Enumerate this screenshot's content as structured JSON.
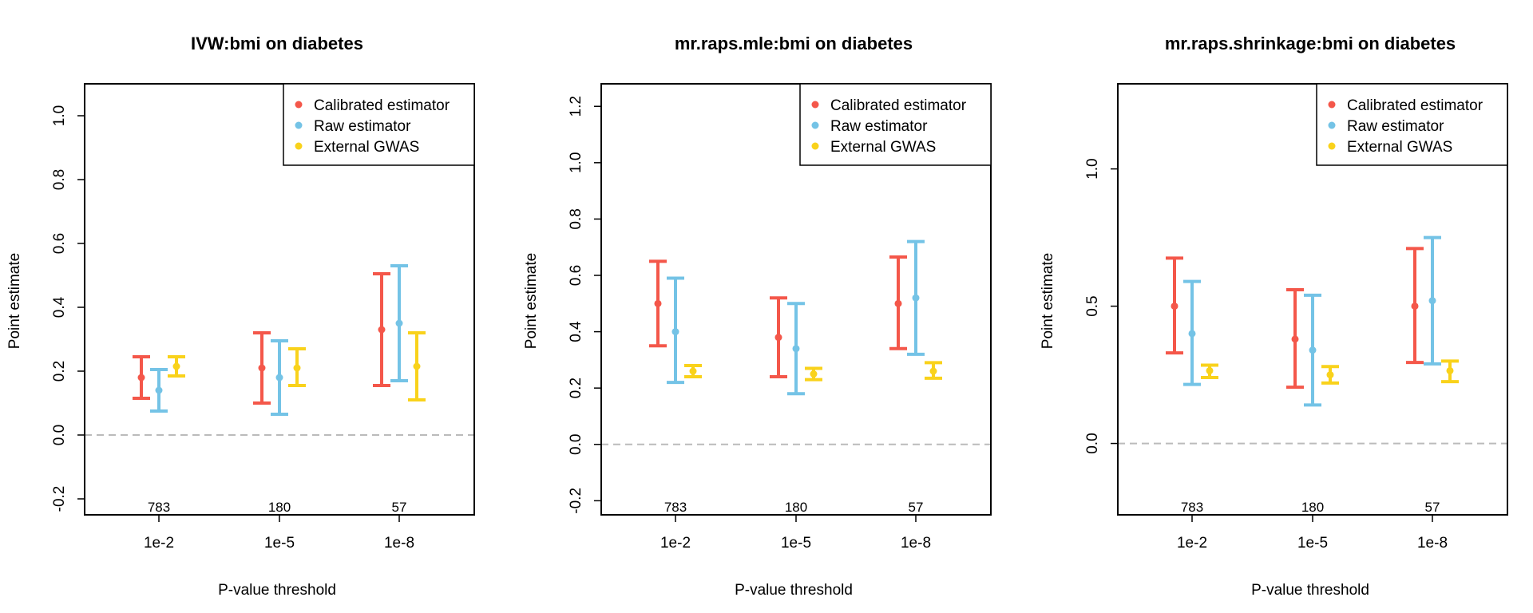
{
  "colors": {
    "calibrated": "#F4574A",
    "raw": "#74C3E6",
    "external": "#F9D21B",
    "zero_line": "#BBBBBB"
  },
  "chart_data": [
    {
      "type": "errorbar",
      "title": "IVW:bmi on diabetes",
      "xlabel": "P-value threshold",
      "ylabel": "Point estimate",
      "categories": [
        "1e-2",
        "1e-5",
        "1e-8"
      ],
      "counts": [
        "783",
        "180",
        "57"
      ],
      "ylim": [
        -0.25,
        1.1
      ],
      "yticks": [
        -0.2,
        0.0,
        0.2,
        0.4,
        0.6,
        0.8,
        1.0
      ],
      "ytick_labels": [
        "-0.2",
        "0.0",
        "0.2",
        "0.4",
        "0.6",
        "0.8",
        "1.0"
      ],
      "zero_line": 0,
      "legend_position": "top-right",
      "series": [
        {
          "name": "Calibrated estimator",
          "color_key": "calibrated",
          "points": [
            {
              "est": 0.18,
              "lo": 0.115,
              "hi": 0.245
            },
            {
              "est": 0.21,
              "lo": 0.1,
              "hi": 0.32
            },
            {
              "est": 0.33,
              "lo": 0.155,
              "hi": 0.505
            }
          ]
        },
        {
          "name": "Raw estimator",
          "color_key": "raw",
          "points": [
            {
              "est": 0.14,
              "lo": 0.075,
              "hi": 0.205
            },
            {
              "est": 0.18,
              "lo": 0.065,
              "hi": 0.295
            },
            {
              "est": 0.35,
              "lo": 0.17,
              "hi": 0.53
            }
          ]
        },
        {
          "name": "External GWAS",
          "color_key": "external",
          "points": [
            {
              "est": 0.215,
              "lo": 0.185,
              "hi": 0.245
            },
            {
              "est": 0.21,
              "lo": 0.155,
              "hi": 0.27
            },
            {
              "est": 0.215,
              "lo": 0.11,
              "hi": 0.32
            }
          ]
        }
      ]
    },
    {
      "type": "errorbar",
      "title": "mr.raps.mle:bmi on diabetes",
      "xlabel": "P-value threshold",
      "ylabel": "Point estimate",
      "categories": [
        "1e-2",
        "1e-5",
        "1e-8"
      ],
      "counts": [
        "783",
        "180",
        "57"
      ],
      "ylim": [
        -0.25,
        1.28
      ],
      "yticks": [
        -0.2,
        0.0,
        0.2,
        0.4,
        0.6,
        0.8,
        1.0,
        1.2
      ],
      "ytick_labels": [
        "-0.2",
        "0.0",
        "0.2",
        "0.4",
        "0.6",
        "0.8",
        "1.0",
        "1.2"
      ],
      "zero_line": 0,
      "legend_position": "top-right",
      "series": [
        {
          "name": "Calibrated estimator",
          "color_key": "calibrated",
          "points": [
            {
              "est": 0.5,
              "lo": 0.35,
              "hi": 0.65
            },
            {
              "est": 0.38,
              "lo": 0.24,
              "hi": 0.52
            },
            {
              "est": 0.5,
              "lo": 0.34,
              "hi": 0.665
            }
          ]
        },
        {
          "name": "Raw estimator",
          "color_key": "raw",
          "points": [
            {
              "est": 0.4,
              "lo": 0.22,
              "hi": 0.59
            },
            {
              "est": 0.34,
              "lo": 0.18,
              "hi": 0.5
            },
            {
              "est": 0.52,
              "lo": 0.32,
              "hi": 0.72
            }
          ]
        },
        {
          "name": "External GWAS",
          "color_key": "external",
          "points": [
            {
              "est": 0.26,
              "lo": 0.24,
              "hi": 0.28
            },
            {
              "est": 0.25,
              "lo": 0.23,
              "hi": 0.27
            },
            {
              "est": 0.26,
              "lo": 0.235,
              "hi": 0.29
            }
          ]
        }
      ]
    },
    {
      "type": "errorbar",
      "title": "mr.raps.shrinkage:bmi on diabetes",
      "xlabel": "P-value threshold",
      "ylabel": "Point estimate",
      "categories": [
        "1e-2",
        "1e-5",
        "1e-8"
      ],
      "counts": [
        "783",
        "180",
        "57"
      ],
      "ylim": [
        -0.26,
        1.31
      ],
      "yticks": [
        0.0,
        0.5,
        1.0
      ],
      "ytick_labels": [
        "0.0",
        "0.5",
        "1.0"
      ],
      "zero_line": 0,
      "legend_position": "top-right",
      "series": [
        {
          "name": "Calibrated estimator",
          "color_key": "calibrated",
          "points": [
            {
              "est": 0.5,
              "lo": 0.33,
              "hi": 0.675
            },
            {
              "est": 0.38,
              "lo": 0.205,
              "hi": 0.56
            },
            {
              "est": 0.5,
              "lo": 0.295,
              "hi": 0.71
            }
          ]
        },
        {
          "name": "Raw estimator",
          "color_key": "raw",
          "points": [
            {
              "est": 0.4,
              "lo": 0.215,
              "hi": 0.59
            },
            {
              "est": 0.34,
              "lo": 0.14,
              "hi": 0.54
            },
            {
              "est": 0.52,
              "lo": 0.29,
              "hi": 0.75
            }
          ]
        },
        {
          "name": "External GWAS",
          "color_key": "external",
          "points": [
            {
              "est": 0.265,
              "lo": 0.24,
              "hi": 0.285
            },
            {
              "est": 0.25,
              "lo": 0.22,
              "hi": 0.28
            },
            {
              "est": 0.265,
              "lo": 0.225,
              "hi": 0.3
            }
          ]
        }
      ]
    }
  ]
}
